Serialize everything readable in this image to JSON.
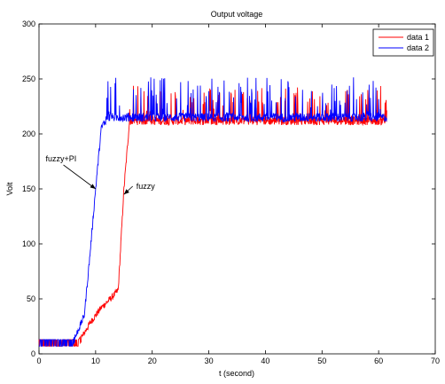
{
  "chart_data": {
    "type": "line",
    "title": "Output voltage",
    "xlabel": "t (second)",
    "ylabel": "Volt",
    "xlim": [
      0,
      70
    ],
    "ylim": [
      0,
      300
    ],
    "xticks": [
      0,
      10,
      20,
      30,
      40,
      50,
      60,
      70
    ],
    "yticks": [
      0,
      50,
      100,
      150,
      200,
      250,
      300
    ],
    "grid": false,
    "legend_position": "top-right",
    "series": [
      {
        "name": "data 1",
        "color": "#ff0000",
        "points": [
          [
            0,
            10
          ],
          [
            7,
            10
          ],
          [
            9,
            28
          ],
          [
            11,
            42
          ],
          [
            13,
            52
          ],
          [
            14,
            58
          ],
          [
            15,
            150
          ],
          [
            16,
            212
          ],
          [
            61.5,
            212
          ]
        ],
        "noise_band": [
          212,
          244
        ]
      },
      {
        "name": "data 2",
        "color": "#0000ff",
        "points": [
          [
            0,
            10
          ],
          [
            6,
            10
          ],
          [
            8,
            35
          ],
          [
            9,
            90
          ],
          [
            10,
            150
          ],
          [
            11,
            205
          ],
          [
            12,
            215
          ],
          [
            61.5,
            215
          ]
        ],
        "noise_band": [
          210,
          252
        ]
      }
    ],
    "annotations": [
      {
        "text": "fuzzy+PI",
        "at": [
          10,
          150
        ],
        "label_pos": [
          4,
          175
        ]
      },
      {
        "text": "fuzzy",
        "at": [
          15,
          145
        ],
        "label_pos": [
          20,
          150
        ]
      }
    ]
  }
}
